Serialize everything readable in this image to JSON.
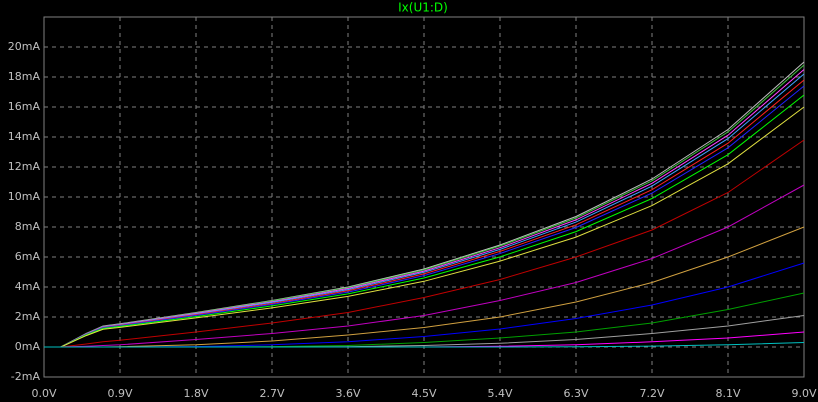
{
  "chart_data": {
    "type": "line",
    "title": "Ix(U1:D)",
    "x": [
      0,
      0.2,
      0.5,
      0.7,
      0.9,
      1.8,
      2.7,
      3.6,
      4.5,
      5.4,
      6.3,
      7.2,
      8.1,
      9.0
    ],
    "xlim": [
      0,
      9
    ],
    "ylim": [
      -2,
      22
    ],
    "grid": true,
    "xticks": [
      {
        "value": 0,
        "label": "0.0V"
      },
      {
        "value": 0.9,
        "label": "0.9V"
      },
      {
        "value": 1.8,
        "label": "1.8V"
      },
      {
        "value": 2.7,
        "label": "2.7V"
      },
      {
        "value": 3.6,
        "label": "3.6V"
      },
      {
        "value": 4.5,
        "label": "4.5V"
      },
      {
        "value": 5.4,
        "label": "5.4V"
      },
      {
        "value": 6.3,
        "label": "6.3V"
      },
      {
        "value": 7.2,
        "label": "7.2V"
      },
      {
        "value": 8.1,
        "label": "8.1V"
      },
      {
        "value": 9.0,
        "label": "9.0V"
      }
    ],
    "yticks": [
      {
        "value": -2,
        "label": "-2mA"
      },
      {
        "value": 0,
        "label": "0mA"
      },
      {
        "value": 2,
        "label": "2mA"
      },
      {
        "value": 4,
        "label": "4mA"
      },
      {
        "value": 6,
        "label": "6mA"
      },
      {
        "value": 8,
        "label": "8mA"
      },
      {
        "value": 10,
        "label": "10mA"
      },
      {
        "value": 12,
        "label": "12mA"
      },
      {
        "value": 14,
        "label": "14mA"
      },
      {
        "value": 16,
        "label": "16mA"
      },
      {
        "value": 18,
        "label": "18mA"
      },
      {
        "value": 20,
        "label": "20mA"
      }
    ],
    "series": [
      {
        "color": "#c0c0c0",
        "values": [
          0,
          0,
          0.9,
          1.4,
          1.55,
          2.3,
          3.1,
          4.0,
          5.2,
          6.8,
          8.7,
          11.2,
          14.5,
          19.0
        ]
      },
      {
        "color": "#40c040",
        "values": [
          0,
          0,
          0.89,
          1.38,
          1.53,
          2.27,
          3.07,
          3.96,
          5.14,
          6.73,
          8.6,
          11.08,
          14.34,
          18.8
        ]
      },
      {
        "color": "#ff40ff",
        "values": [
          0,
          0,
          0.88,
          1.36,
          1.51,
          2.24,
          3.02,
          3.9,
          5.06,
          6.62,
          8.47,
          10.91,
          14.12,
          18.5
        ]
      },
      {
        "color": "#40a0ff",
        "values": [
          0,
          0,
          0.86,
          1.34,
          1.48,
          2.2,
          2.97,
          3.83,
          4.98,
          6.51,
          8.33,
          10.73,
          13.89,
          18.2
        ]
      },
      {
        "color": "#ff2020",
        "values": [
          0,
          0,
          0.84,
          1.31,
          1.45,
          2.16,
          2.9,
          3.75,
          4.87,
          6.37,
          8.15,
          10.49,
          13.59,
          17.8
        ]
      },
      {
        "color": "#2020ff",
        "values": [
          0,
          0,
          0.82,
          1.28,
          1.42,
          2.11,
          2.84,
          3.66,
          4.76,
          6.23,
          7.97,
          10.26,
          13.28,
          17.4
        ]
      },
      {
        "color": "#00ff00",
        "values": [
          0,
          0,
          0.8,
          1.24,
          1.37,
          2.03,
          2.74,
          3.54,
          4.6,
          6.01,
          7.69,
          9.9,
          12.82,
          16.8
        ]
      },
      {
        "color": "#e0e040",
        "values": [
          0,
          0,
          0.76,
          1.18,
          1.31,
          1.94,
          2.61,
          3.37,
          4.38,
          5.73,
          7.33,
          9.43,
          12.21,
          16.0
        ]
      },
      {
        "color": "#c00000",
        "values": [
          0,
          0,
          0.2,
          0.35,
          0.45,
          1.0,
          1.6,
          2.3,
          3.3,
          4.5,
          6.0,
          7.8,
          10.3,
          13.8
        ]
      },
      {
        "color": "#c000c0",
        "values": [
          0,
          0,
          0.05,
          0.1,
          0.15,
          0.5,
          0.9,
          1.4,
          2.1,
          3.1,
          4.3,
          5.9,
          8.0,
          10.8
        ]
      },
      {
        "color": "#d0a040",
        "values": [
          0,
          0,
          0,
          0,
          0.02,
          0.15,
          0.4,
          0.8,
          1.3,
          2.0,
          3.0,
          4.3,
          6.0,
          8.0
        ]
      },
      {
        "color": "#0000ff",
        "values": [
          0,
          0,
          0,
          0,
          0,
          0.03,
          0.15,
          0.35,
          0.7,
          1.2,
          1.9,
          2.8,
          4.0,
          5.6
        ]
      },
      {
        "color": "#00a000",
        "values": [
          0,
          0,
          0,
          0,
          0,
          0,
          0.03,
          0.1,
          0.3,
          0.6,
          1.0,
          1.6,
          2.5,
          3.6
        ]
      },
      {
        "color": "#a0a0a0",
        "values": [
          0,
          0,
          0,
          0,
          0,
          0,
          0,
          0.02,
          0.1,
          0.25,
          0.5,
          0.9,
          1.4,
          2.1
        ]
      },
      {
        "color": "#ff00ff",
        "values": [
          0,
          0,
          0,
          0,
          0,
          0,
          0,
          0,
          0,
          0.05,
          0.15,
          0.35,
          0.6,
          1.0
        ]
      },
      {
        "color": "#00c0c0",
        "values": [
          0,
          0,
          0,
          0,
          0,
          0,
          0,
          0,
          0,
          0,
          0.02,
          0.06,
          0.15,
          0.3
        ]
      }
    ]
  }
}
